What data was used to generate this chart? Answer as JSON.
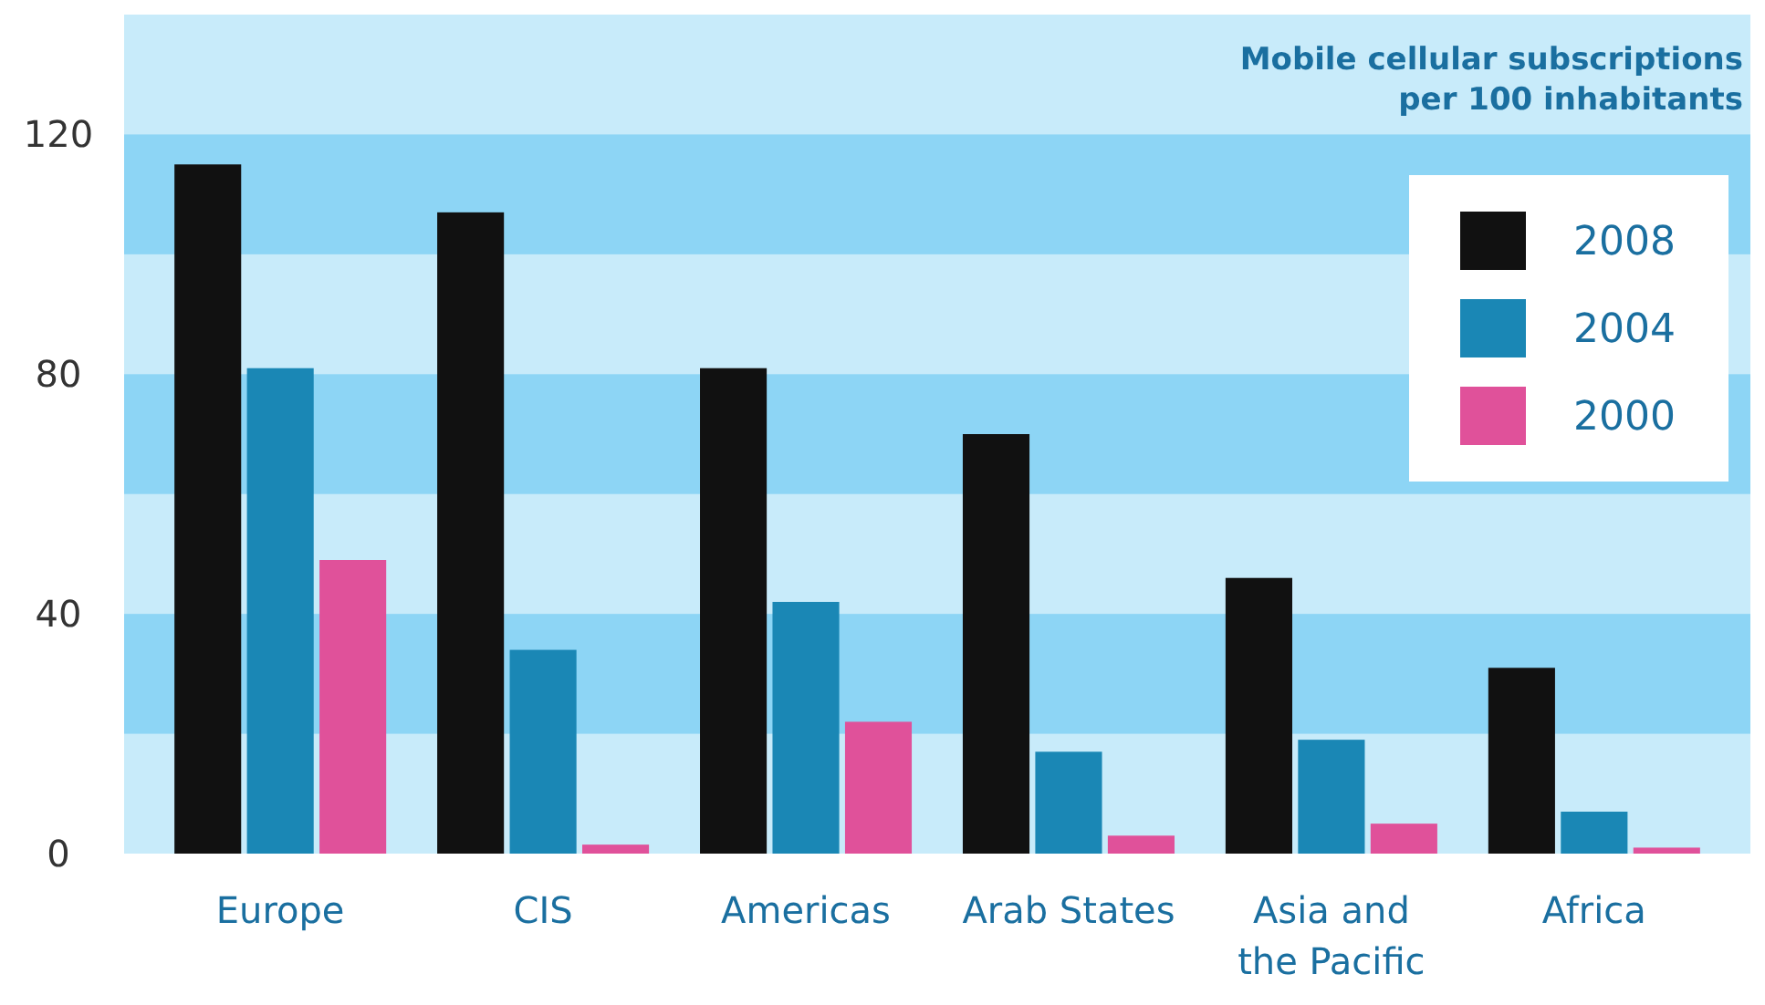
{
  "chart_data": {
    "type": "bar",
    "title": "Mobile cellular subscriptions per 100 inhabitants",
    "categories": [
      "Europe",
      "CIS",
      "Americas",
      "Arab States",
      "Asia and the Pacific",
      "Africa"
    ],
    "series": [
      {
        "name": "2008",
        "color": "#111111",
        "values": [
          115,
          107,
          81,
          70,
          46,
          31
        ]
      },
      {
        "name": "2004",
        "color": "#1a87b5",
        "values": [
          81,
          34,
          42,
          17,
          19,
          7
        ]
      },
      {
        "name": "2000",
        "color": "#e0519a",
        "values": [
          49,
          1.5,
          22,
          3,
          5,
          1
        ]
      }
    ],
    "ylim": [
      0,
      140
    ],
    "yticks": [
      0,
      40,
      80,
      120
    ],
    "bands": [
      {
        "axis": "y",
        "from": 20,
        "to": 40,
        "color": "#8dd5f5"
      },
      {
        "axis": "y",
        "from": 60,
        "to": 80,
        "color": "#8dd5f5"
      },
      {
        "axis": "y",
        "from": 100,
        "to": 120,
        "color": "#8dd5f5"
      }
    ],
    "legend": "top right"
  }
}
